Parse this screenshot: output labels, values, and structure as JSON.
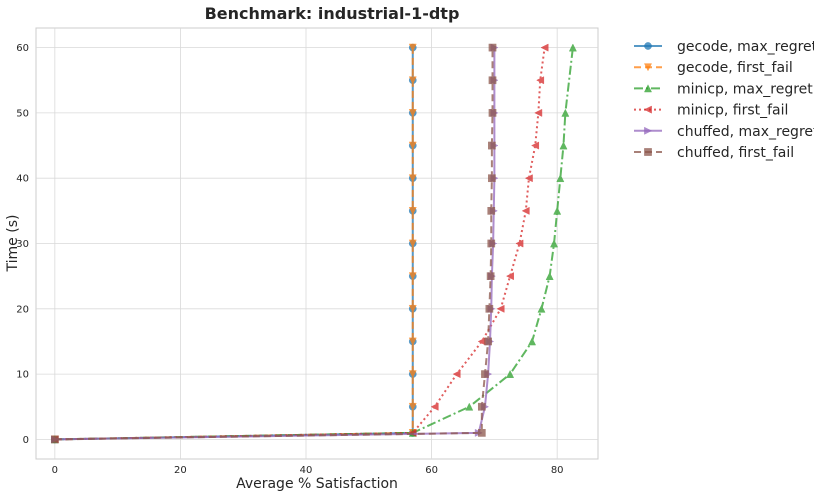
{
  "chart_data": {
    "type": "line",
    "title": "Benchmark: industrial-1-dtp",
    "xlabel": "Average % Satisfaction",
    "ylabel": "Time (s)",
    "xlim": [
      -3,
      86.5
    ],
    "ylim": [
      -3,
      63
    ],
    "xticks": [
      0,
      20,
      40,
      60,
      80
    ],
    "yticks": [
      0,
      10,
      20,
      30,
      40,
      50,
      60
    ],
    "grid": true,
    "legend_position": "outside-right",
    "series": [
      {
        "name": "gecode, max_regret",
        "color": "#1f77b4",
        "linestyle": "solid",
        "marker": "circle",
        "x": [
          0,
          57,
          57,
          57,
          57,
          57,
          57,
          57,
          57,
          57,
          57,
          57,
          57,
          57
        ],
        "y": [
          0,
          1,
          5,
          10,
          15,
          20,
          25,
          30,
          35,
          40,
          45,
          50,
          55,
          60
        ]
      },
      {
        "name": "gecode, first_fail",
        "color": "#ff7f0e",
        "linestyle": "dashed",
        "marker": "triangle-down",
        "x": [
          0,
          57,
          57,
          57,
          57,
          57,
          57,
          57,
          57,
          57,
          57,
          57,
          57,
          57
        ],
        "y": [
          0,
          1,
          5,
          10,
          15,
          20,
          25,
          30,
          35,
          40,
          45,
          50,
          55,
          60
        ]
      },
      {
        "name": "minicp, max_regret",
        "color": "#2ca02c",
        "linestyle": "dashdot",
        "marker": "triangle-up",
        "x": [
          0,
          57,
          66,
          72.5,
          76,
          77.5,
          78.8,
          79.5,
          80,
          80.5,
          81,
          81.3,
          82.5
        ],
        "y": [
          0,
          1,
          5,
          10,
          15,
          20,
          25,
          30,
          35,
          40,
          45,
          50,
          60
        ]
      },
      {
        "name": "minicp, first_fail",
        "color": "#d62728",
        "linestyle": "dotted",
        "marker": "triangle-left",
        "x": [
          0,
          57,
          60.5,
          64,
          68,
          71,
          72.5,
          74,
          75,
          75.5,
          76.5,
          77,
          77.3,
          78
        ],
        "y": [
          0,
          1,
          5,
          10,
          15,
          20,
          25,
          30,
          35,
          40,
          45,
          50,
          55,
          60
        ]
      },
      {
        "name": "chuffed, max_regret",
        "color": "#9467bd",
        "linestyle": "solid",
        "marker": "triangle-right",
        "x": [
          0,
          67.5,
          68.5,
          69,
          69.3,
          69.5,
          69.6,
          69.8,
          69.9,
          70,
          70,
          70,
          70,
          70
        ],
        "y": [
          0,
          1,
          5,
          10,
          15,
          20,
          25,
          30,
          35,
          40,
          45,
          50,
          55,
          60
        ]
      },
      {
        "name": "chuffed, first_fail",
        "color": "#8c564b",
        "linestyle": "dashed",
        "marker": "square",
        "x": [
          0,
          68,
          68,
          68.5,
          69,
          69.2,
          69.4,
          69.5,
          69.5,
          69.6,
          69.6,
          69.7,
          69.7,
          69.7
        ],
        "y": [
          0,
          1,
          5,
          10,
          15,
          20,
          25,
          30,
          35,
          40,
          45,
          50,
          55,
          60
        ]
      }
    ]
  }
}
